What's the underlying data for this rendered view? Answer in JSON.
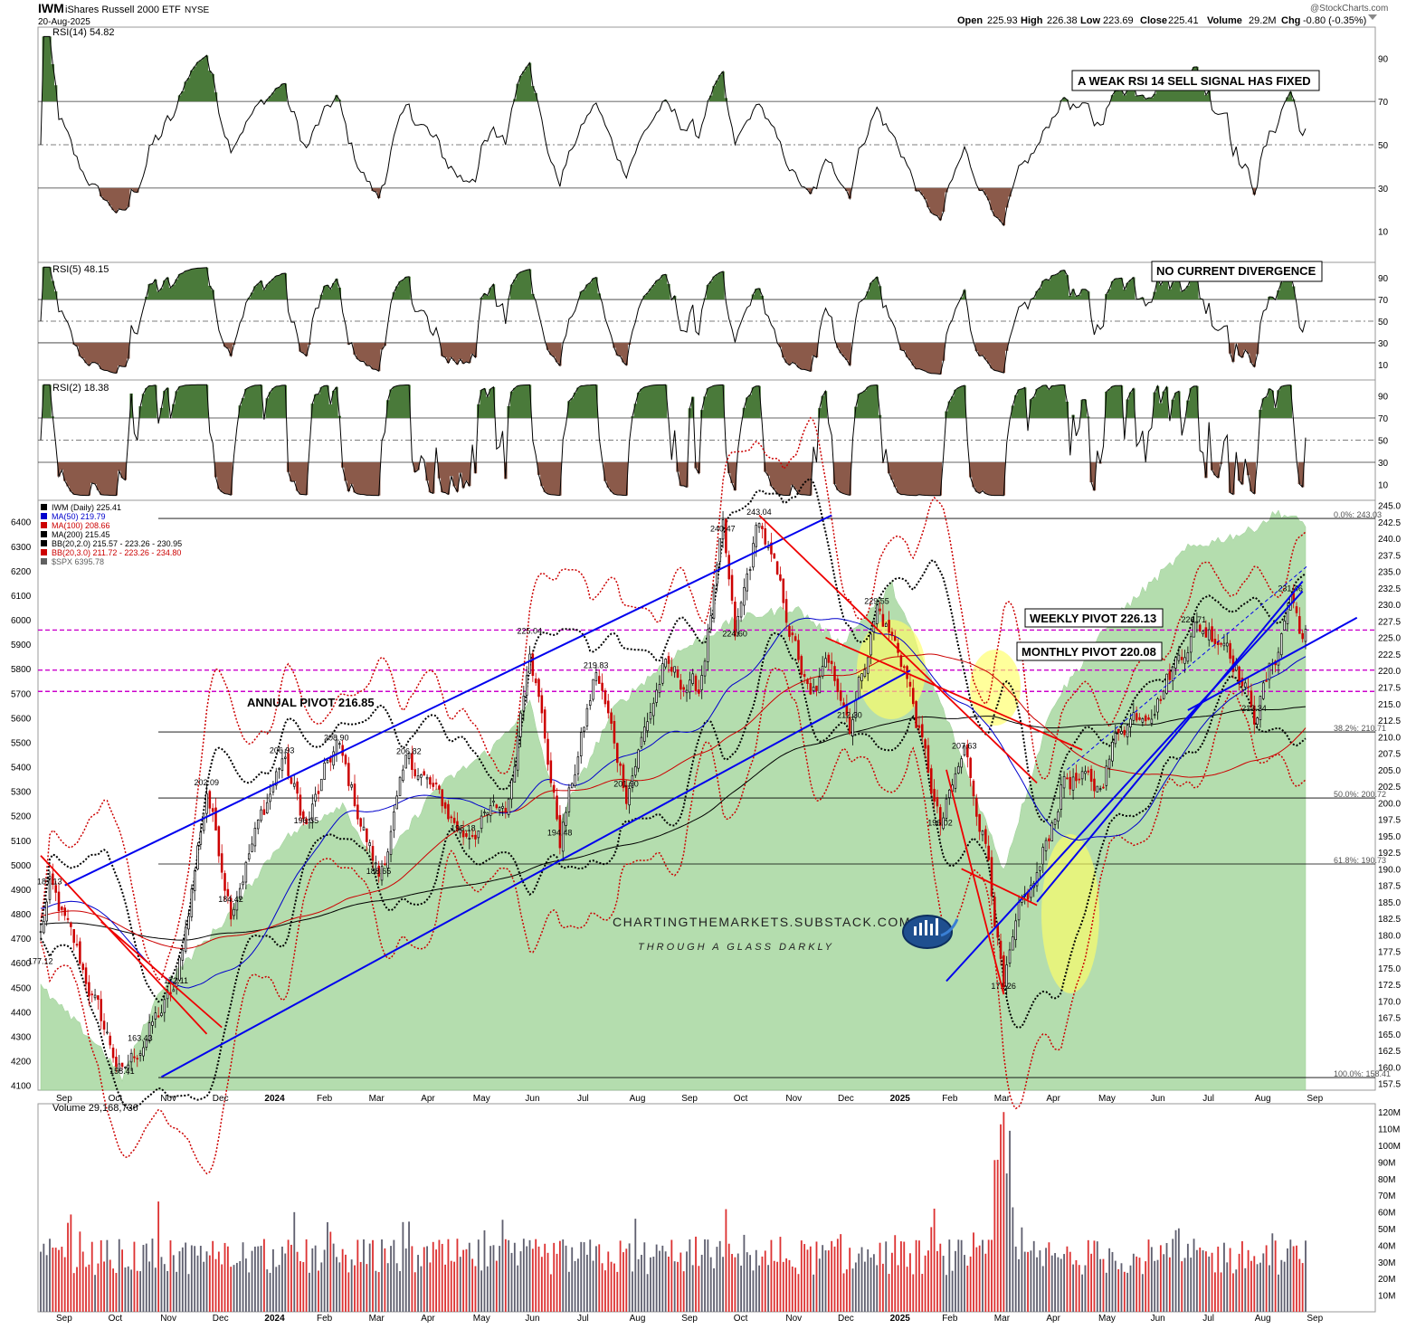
{
  "header": {
    "symbol": "IWM",
    "name": "iShares Russell 2000 ETF",
    "exchange": "NYSE",
    "date": "20-Aug-2025",
    "watermark": "@StockCharts.com",
    "ohlc": {
      "open_label": "Open",
      "open": "225.93",
      "high_label": "High",
      "high": "226.38",
      "low_label": "Low",
      "low": "223.69",
      "close_label": "Close",
      "close": "225.41",
      "volume_label": "Volume",
      "volume": "29.2M",
      "chg_label": "Chg",
      "chg": "-0.80 (-0.35%)"
    }
  },
  "colors": {
    "up_candle": "#000000",
    "down_candle": "#cc0000",
    "spx_fill": "#a8d8a0",
    "ma50": "#0000cc",
    "ma100": "#cc0000",
    "ma200": "#000000",
    "bb2": "#000000",
    "bb3": "#cc0000",
    "trend_blue": "#0000ee",
    "trend_red": "#ee0000",
    "pivot_magenta": "#cc00cc",
    "rsi_overbought_fill": "#4a7a3a",
    "rsi_oversold_fill": "#8b5a4a",
    "highlight": "#ffff66",
    "vol_up": "#606070",
    "vol_down": "#dd3333"
  },
  "panels": {
    "rsi14": {
      "label": "RSI(14) 54.82",
      "scale": [
        "90",
        "70",
        "50",
        "30",
        "10"
      ],
      "annotation": "A WEAK RSI 14 SELL SIGNAL HAS FIXED",
      "last": 54.82
    },
    "rsi5": {
      "label": "RSI(5) 48.15",
      "scale": [
        "90",
        "70",
        "50",
        "30",
        "10"
      ],
      "annotation": "NO CURRENT DIVERGENCE",
      "last": 48.15
    },
    "rsi2": {
      "label": "RSI(2) 18.38",
      "scale": [
        "90",
        "70",
        "50",
        "30",
        "10"
      ],
      "last": 18.38
    },
    "volume": {
      "label": "Volume 29,168,736",
      "scale": [
        "120M",
        "110M",
        "100M",
        "90M",
        "80M",
        "70M",
        "60M",
        "50M",
        "40M",
        "30M",
        "20M",
        "10M"
      ]
    }
  },
  "legend": [
    {
      "text": "IWM (Daily) 225.41",
      "color": "#000000"
    },
    {
      "text": "MA(50) 219.79",
      "color": "#0000cc"
    },
    {
      "text": "MA(100) 208.66",
      "color": "#cc0000"
    },
    {
      "text": "MA(200) 215.45",
      "color": "#000000"
    },
    {
      "text": "BB(20,2.0) 215.57 - 223.26 - 230.95",
      "color": "#000000"
    },
    {
      "text": "BB(20,3.0) 211.72 - 223.26 - 234.80",
      "color": "#cc0000"
    },
    {
      "text": "$SPX 6395.78",
      "color": "#606060"
    }
  ],
  "annotations": {
    "annual_pivot": "ANNUAL PIVOT 216.85",
    "weekly_pivot": "WEEKLY PIVOT 226.13",
    "monthly_pivot": "MONTHLY PIVOT 220.08",
    "website": "CHARTINGTHEMARKETS.SUBSTACK.COM",
    "tagline": "THROUGH A GLASS DARKLY"
  },
  "fib_labels": [
    "0.0%: 243.03",
    "38.2%: 210.71",
    "50.0%: 200.72",
    "61.8%: 190.73",
    "100.0%: 158.41"
  ],
  "chart_data": {
    "type": "line",
    "x_ticks": [
      "Sep",
      "Oct",
      "Nov",
      "Dec",
      "2024",
      "Feb",
      "Mar",
      "Apr",
      "May",
      "Jun",
      "Jul",
      "Aug",
      "Sep",
      "Oct",
      "Nov",
      "Dec",
      "2025",
      "Feb",
      "Mar",
      "Apr",
      "May",
      "Jun",
      "Jul",
      "Aug",
      "Sep"
    ],
    "y_right_ticks": [
      "245.0",
      "242.5",
      "240.0",
      "237.5",
      "235.0",
      "232.5",
      "230.0",
      "227.5",
      "225.0",
      "222.5",
      "220.0",
      "217.5",
      "215.0",
      "212.5",
      "210.0",
      "207.5",
      "205.0",
      "202.5",
      "200.0",
      "197.5",
      "195.0",
      "192.5",
      "190.0",
      "187.5",
      "185.0",
      "182.5",
      "180.0",
      "177.5",
      "175.0",
      "172.5",
      "170.0",
      "167.5",
      "165.0",
      "162.5",
      "160.0",
      "157.5"
    ],
    "y_left_ticks": [
      "6400",
      "6300",
      "6200",
      "6100",
      "6000",
      "5900",
      "5800",
      "5700",
      "5600",
      "5500",
      "5400",
      "5300",
      "5200",
      "5100",
      "5000",
      "4900",
      "4800",
      "4700",
      "4600",
      "4500",
      "4400",
      "4300",
      "4200",
      "4100"
    ],
    "ylim": [
      156.5,
      245.5
    ],
    "y2lim": [
      4080,
      6480
    ],
    "price_anchors": [
      {
        "t": 0,
        "v": 180
      },
      {
        "t": 3,
        "v": 187.13
      },
      {
        "t": 12,
        "v": 177.12
      },
      {
        "t": 27,
        "v": 158.41
      },
      {
        "t": 33,
        "v": 163.43
      },
      {
        "t": 45,
        "v": 172.11
      },
      {
        "t": 55,
        "v": 202.09
      },
      {
        "t": 63,
        "v": 184.42
      },
      {
        "t": 80,
        "v": 206.93
      },
      {
        "t": 88,
        "v": 196.35
      },
      {
        "t": 98,
        "v": 208.9
      },
      {
        "t": 112,
        "v": 188.65
      },
      {
        "t": 122,
        "v": 206.82
      },
      {
        "t": 140,
        "v": 195.18
      },
      {
        "t": 155,
        "v": 200
      },
      {
        "t": 162,
        "v": 225.04
      },
      {
        "t": 172,
        "v": 194.48
      },
      {
        "t": 184,
        "v": 219.83
      },
      {
        "t": 194,
        "v": 201.9
      },
      {
        "t": 206,
        "v": 220
      },
      {
        "t": 218,
        "v": 217
      },
      {
        "t": 226,
        "v": 240.47
      },
      {
        "t": 230,
        "v": 224.6
      },
      {
        "t": 238,
        "v": 243.04
      },
      {
        "t": 246,
        "v": 230
      },
      {
        "t": 255,
        "v": 215
      },
      {
        "t": 262,
        "v": 222
      },
      {
        "t": 268,
        "v": 212.3
      },
      {
        "t": 277,
        "v": 229.55
      },
      {
        "t": 286,
        "v": 221
      },
      {
        "t": 298,
        "v": 196.02
      },
      {
        "t": 306,
        "v": 207.63
      },
      {
        "t": 314,
        "v": 192
      },
      {
        "t": 319,
        "v": 171.26
      },
      {
        "t": 324,
        "v": 182
      },
      {
        "t": 331,
        "v": 190
      },
      {
        "t": 339,
        "v": 204
      },
      {
        "t": 350,
        "v": 202
      },
      {
        "t": 358,
        "v": 212
      },
      {
        "t": 370,
        "v": 216
      },
      {
        "t": 382,
        "v": 226.71
      },
      {
        "t": 393,
        "v": 225
      },
      {
        "t": 402,
        "v": 213.34
      },
      {
        "t": 409,
        "v": 222
      },
      {
        "t": 414,
        "v": 231.46
      },
      {
        "t": 418,
        "v": 225.41
      }
    ],
    "price_labels": [
      {
        "t": 3,
        "v": 187.13,
        "text": "187.13"
      },
      {
        "t": 0,
        "v": 177.12,
        "text": "177.12"
      },
      {
        "t": 27,
        "v": 158.41,
        "text": "158.41"
      },
      {
        "t": 33,
        "v": 163.43,
        "text": "163.43"
      },
      {
        "t": 45,
        "v": 172.11,
        "text": "172.11"
      },
      {
        "t": 55,
        "v": 202.09,
        "text": "202.09"
      },
      {
        "t": 63,
        "v": 184.42,
        "text": "184.42"
      },
      {
        "t": 80,
        "v": 206.93,
        "text": "206.93"
      },
      {
        "t": 88,
        "v": 196.35,
        "text": "196.35"
      },
      {
        "t": 98,
        "v": 208.9,
        "text": "208.90"
      },
      {
        "t": 112,
        "v": 188.65,
        "text": "188.65"
      },
      {
        "t": 122,
        "v": 206.82,
        "text": "206.82"
      },
      {
        "t": 140,
        "v": 195.18,
        "text": "195.18"
      },
      {
        "t": 162,
        "v": 225.04,
        "text": "225.04"
      },
      {
        "t": 172,
        "v": 194.48,
        "text": "194.48"
      },
      {
        "t": 184,
        "v": 219.83,
        "text": "219.83"
      },
      {
        "t": 194,
        "v": 201.9,
        "text": "201.90"
      },
      {
        "t": 226,
        "v": 240.47,
        "text": "240.47"
      },
      {
        "t": 230,
        "v": 224.6,
        "text": "224.60"
      },
      {
        "t": 238,
        "v": 243.04,
        "text": "243.04"
      },
      {
        "t": 268,
        "v": 212.3,
        "text": "212.30"
      },
      {
        "t": 277,
        "v": 229.55,
        "text": "229.55"
      },
      {
        "t": 298,
        "v": 196.02,
        "text": "196.02"
      },
      {
        "t": 306,
        "v": 207.63,
        "text": "207.63"
      },
      {
        "t": 319,
        "v": 171.26,
        "text": "171.26"
      },
      {
        "t": 382,
        "v": 226.71,
        "text": "226.71"
      },
      {
        "t": 402,
        "v": 213.34,
        "text": "213.34"
      },
      {
        "t": 414,
        "v": 231.46,
        "text": "231.46"
      }
    ],
    "fib_levels": [
      243.03,
      210.71,
      200.72,
      190.73,
      158.41
    ],
    "pivots": {
      "weekly": 226.13,
      "monthly": 220.08,
      "annual": 216.85
    },
    "spx_anchors": [
      {
        "t": 0,
        "v": 4500
      },
      {
        "t": 20,
        "v": 4250
      },
      {
        "t": 27,
        "v": 4130
      },
      {
        "t": 40,
        "v": 4500
      },
      {
        "t": 60,
        "v": 4760
      },
      {
        "t": 80,
        "v": 5100
      },
      {
        "t": 100,
        "v": 5250
      },
      {
        "t": 112,
        "v": 4970
      },
      {
        "t": 130,
        "v": 5300
      },
      {
        "t": 150,
        "v": 5480
      },
      {
        "t": 162,
        "v": 5660
      },
      {
        "t": 172,
        "v": 5180
      },
      {
        "t": 190,
        "v": 5640
      },
      {
        "t": 210,
        "v": 5860
      },
      {
        "t": 230,
        "v": 6000
      },
      {
        "t": 250,
        "v": 6050
      },
      {
        "t": 265,
        "v": 5900
      },
      {
        "t": 282,
        "v": 6140
      },
      {
        "t": 300,
        "v": 5600
      },
      {
        "t": 319,
        "v": 4980
      },
      {
        "t": 335,
        "v": 5650
      },
      {
        "t": 355,
        "v": 6000
      },
      {
        "t": 380,
        "v": 6290
      },
      {
        "t": 400,
        "v": 6360
      },
      {
        "t": 410,
        "v": 6440
      },
      {
        "t": 418,
        "v": 6395
      }
    ]
  }
}
